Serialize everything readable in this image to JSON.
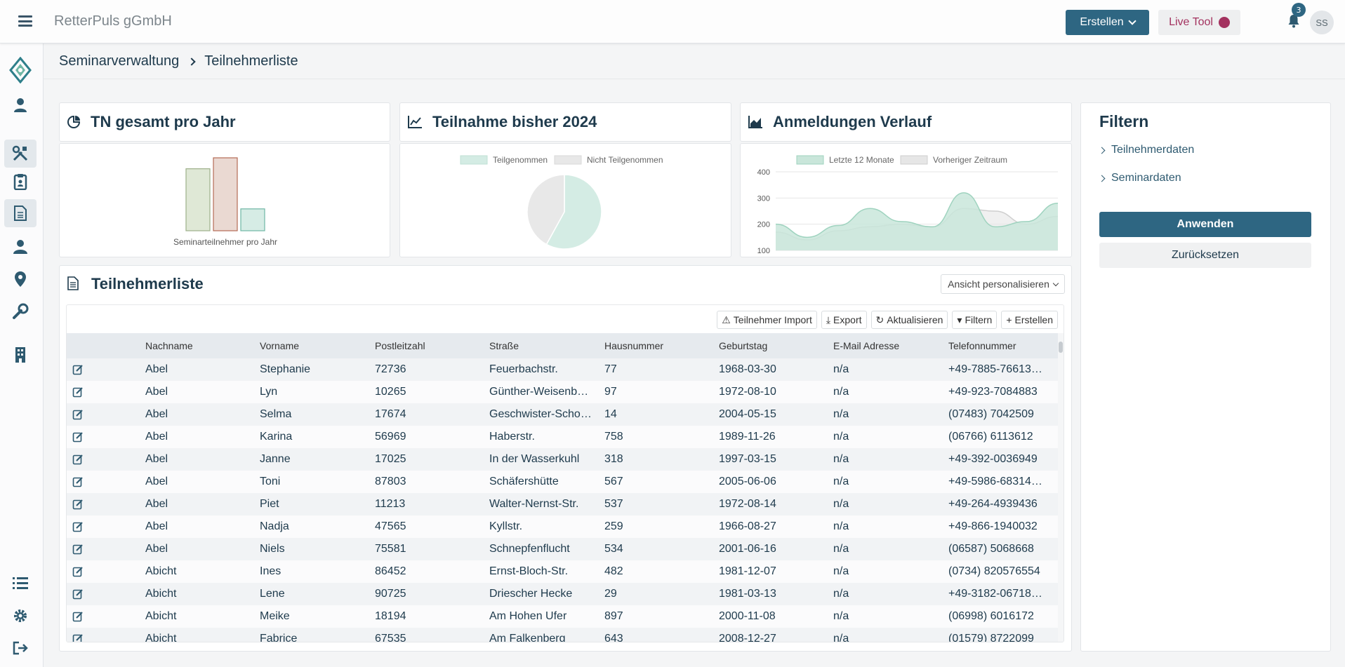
{
  "app": {
    "org_name": "RetterPuls gGmbH"
  },
  "topbar": {
    "create_label": "Erstellen",
    "live_tool_label": "Live Tool",
    "notification_count": "3",
    "avatar_initials": "SS"
  },
  "breadcrumb": {
    "parent": "Seminarverwaltung",
    "current": "Teilnehmerliste"
  },
  "cards": {
    "tn_title": "TN gesamt pro Jahr",
    "teilnahme_title": "Teilnahme bisher 2024",
    "anmeldungen_title": "Anmeldungen Verlauf"
  },
  "filter": {
    "title": "Filtern",
    "items": [
      "Teilnehmerdaten",
      "Seminardaten"
    ],
    "apply_label": "Anwenden",
    "reset_label": "Zurücksetzen"
  },
  "list": {
    "title": "Teilnehmerliste",
    "view_select": "Ansicht personalisieren",
    "toolbar": [
      "Teilnehmer Import",
      "Export",
      "Aktualisieren",
      "Filtern",
      "Erstellen"
    ],
    "columns": [
      "Nachname",
      "Vorname",
      "Postleitzahl",
      "Straße",
      "Hausnummer",
      "Geburtstag",
      "E-Mail Adresse",
      "Telefonnummer"
    ],
    "rows": [
      [
        "Abel",
        "Stephanie",
        "72736",
        "Feuerbachstr.",
        "77",
        "1968-03-30",
        "n/a",
        "+49-7885-76613…"
      ],
      [
        "Abel",
        "Lyn",
        "10265",
        "Günther-Weisenb…",
        "97",
        "1972-08-10",
        "n/a",
        "+49-923-7084883"
      ],
      [
        "Abel",
        "Selma",
        "17674",
        "Geschwister-Schol…",
        "14",
        "2004-05-15",
        "n/a",
        "(07483) 7042509"
      ],
      [
        "Abel",
        "Karina",
        "56969",
        "Haberstr.",
        "758",
        "1989-11-26",
        "n/a",
        "(06766) 6113612"
      ],
      [
        "Abel",
        "Janne",
        "17025",
        "In der Wasserkuhl",
        "318",
        "1997-03-15",
        "n/a",
        "+49-392-0036949"
      ],
      [
        "Abel",
        "Toni",
        "87803",
        "Schäfershütte",
        "567",
        "2005-06-06",
        "n/a",
        "+49-5986-68314…"
      ],
      [
        "Abel",
        "Piet",
        "11213",
        "Walter-Nernst-Str.",
        "537",
        "1972-08-14",
        "n/a",
        "+49-264-4939436"
      ],
      [
        "Abel",
        "Nadja",
        "47565",
        "Kyllstr.",
        "259",
        "1966-08-27",
        "n/a",
        "+49-866-1940032"
      ],
      [
        "Abel",
        "Niels",
        "75581",
        "Schnepfenflucht",
        "534",
        "2001-06-16",
        "n/a",
        "(06587) 5068668"
      ],
      [
        "Abicht",
        "Ines",
        "86452",
        "Ernst-Bloch-Str.",
        "482",
        "1981-12-07",
        "n/a",
        "(0734) 820576554"
      ],
      [
        "Abicht",
        "Lene",
        "90725",
        "Driescher Hecke",
        "29",
        "1981-03-13",
        "n/a",
        "+49-3182-06718…"
      ],
      [
        "Abicht",
        "Meike",
        "18194",
        "Am Hohen Ufer",
        "897",
        "2000-11-08",
        "n/a",
        "(06998) 6016172"
      ],
      [
        "Abicht",
        "Fabrice",
        "67535",
        "Am Falkenberg",
        "643",
        "2008-12-27",
        "n/a",
        "(01579) 8722099"
      ]
    ]
  },
  "chart_data": [
    {
      "type": "bar",
      "xlabel": "Seminarteilnehmer pro Jahr",
      "categories": [
        "",
        "",
        ""
      ],
      "values": [
        85,
        100,
        30
      ],
      "colors": [
        "#dfe8d6",
        "#ead9d2",
        "#d6ece5"
      ],
      "border_colors": [
        "#9db08a",
        "#b46b55",
        "#6fb7a5"
      ]
    },
    {
      "type": "pie",
      "legend": [
        "Teilgenommen",
        "Nicht Teilgenommen"
      ],
      "values": [
        58,
        42
      ],
      "colors": [
        "#d4ece4",
        "#e8e8e8"
      ]
    },
    {
      "type": "area",
      "legend": [
        "Letzte 12 Monate",
        "Vorheriger Zeitraum"
      ],
      "colors": [
        "#c9e6da",
        "#e6e6e6"
      ],
      "border_colors": [
        "#9fd3bf",
        "#cfcfcf"
      ],
      "y_ticks": [
        "400",
        "300",
        "200",
        "100"
      ],
      "ylim": [
        100,
        400
      ],
      "series": [
        {
          "name": "Letzte 12 Monate",
          "values": [
            200,
            150,
            195,
            260,
            210,
            190,
            320,
            190,
            210,
            280
          ]
        },
        {
          "name": "Vorheriger Zeitraum",
          "values": [
            170,
            140,
            175,
            190,
            200,
            190,
            260,
            250,
            200,
            230
          ]
        }
      ]
    }
  ]
}
